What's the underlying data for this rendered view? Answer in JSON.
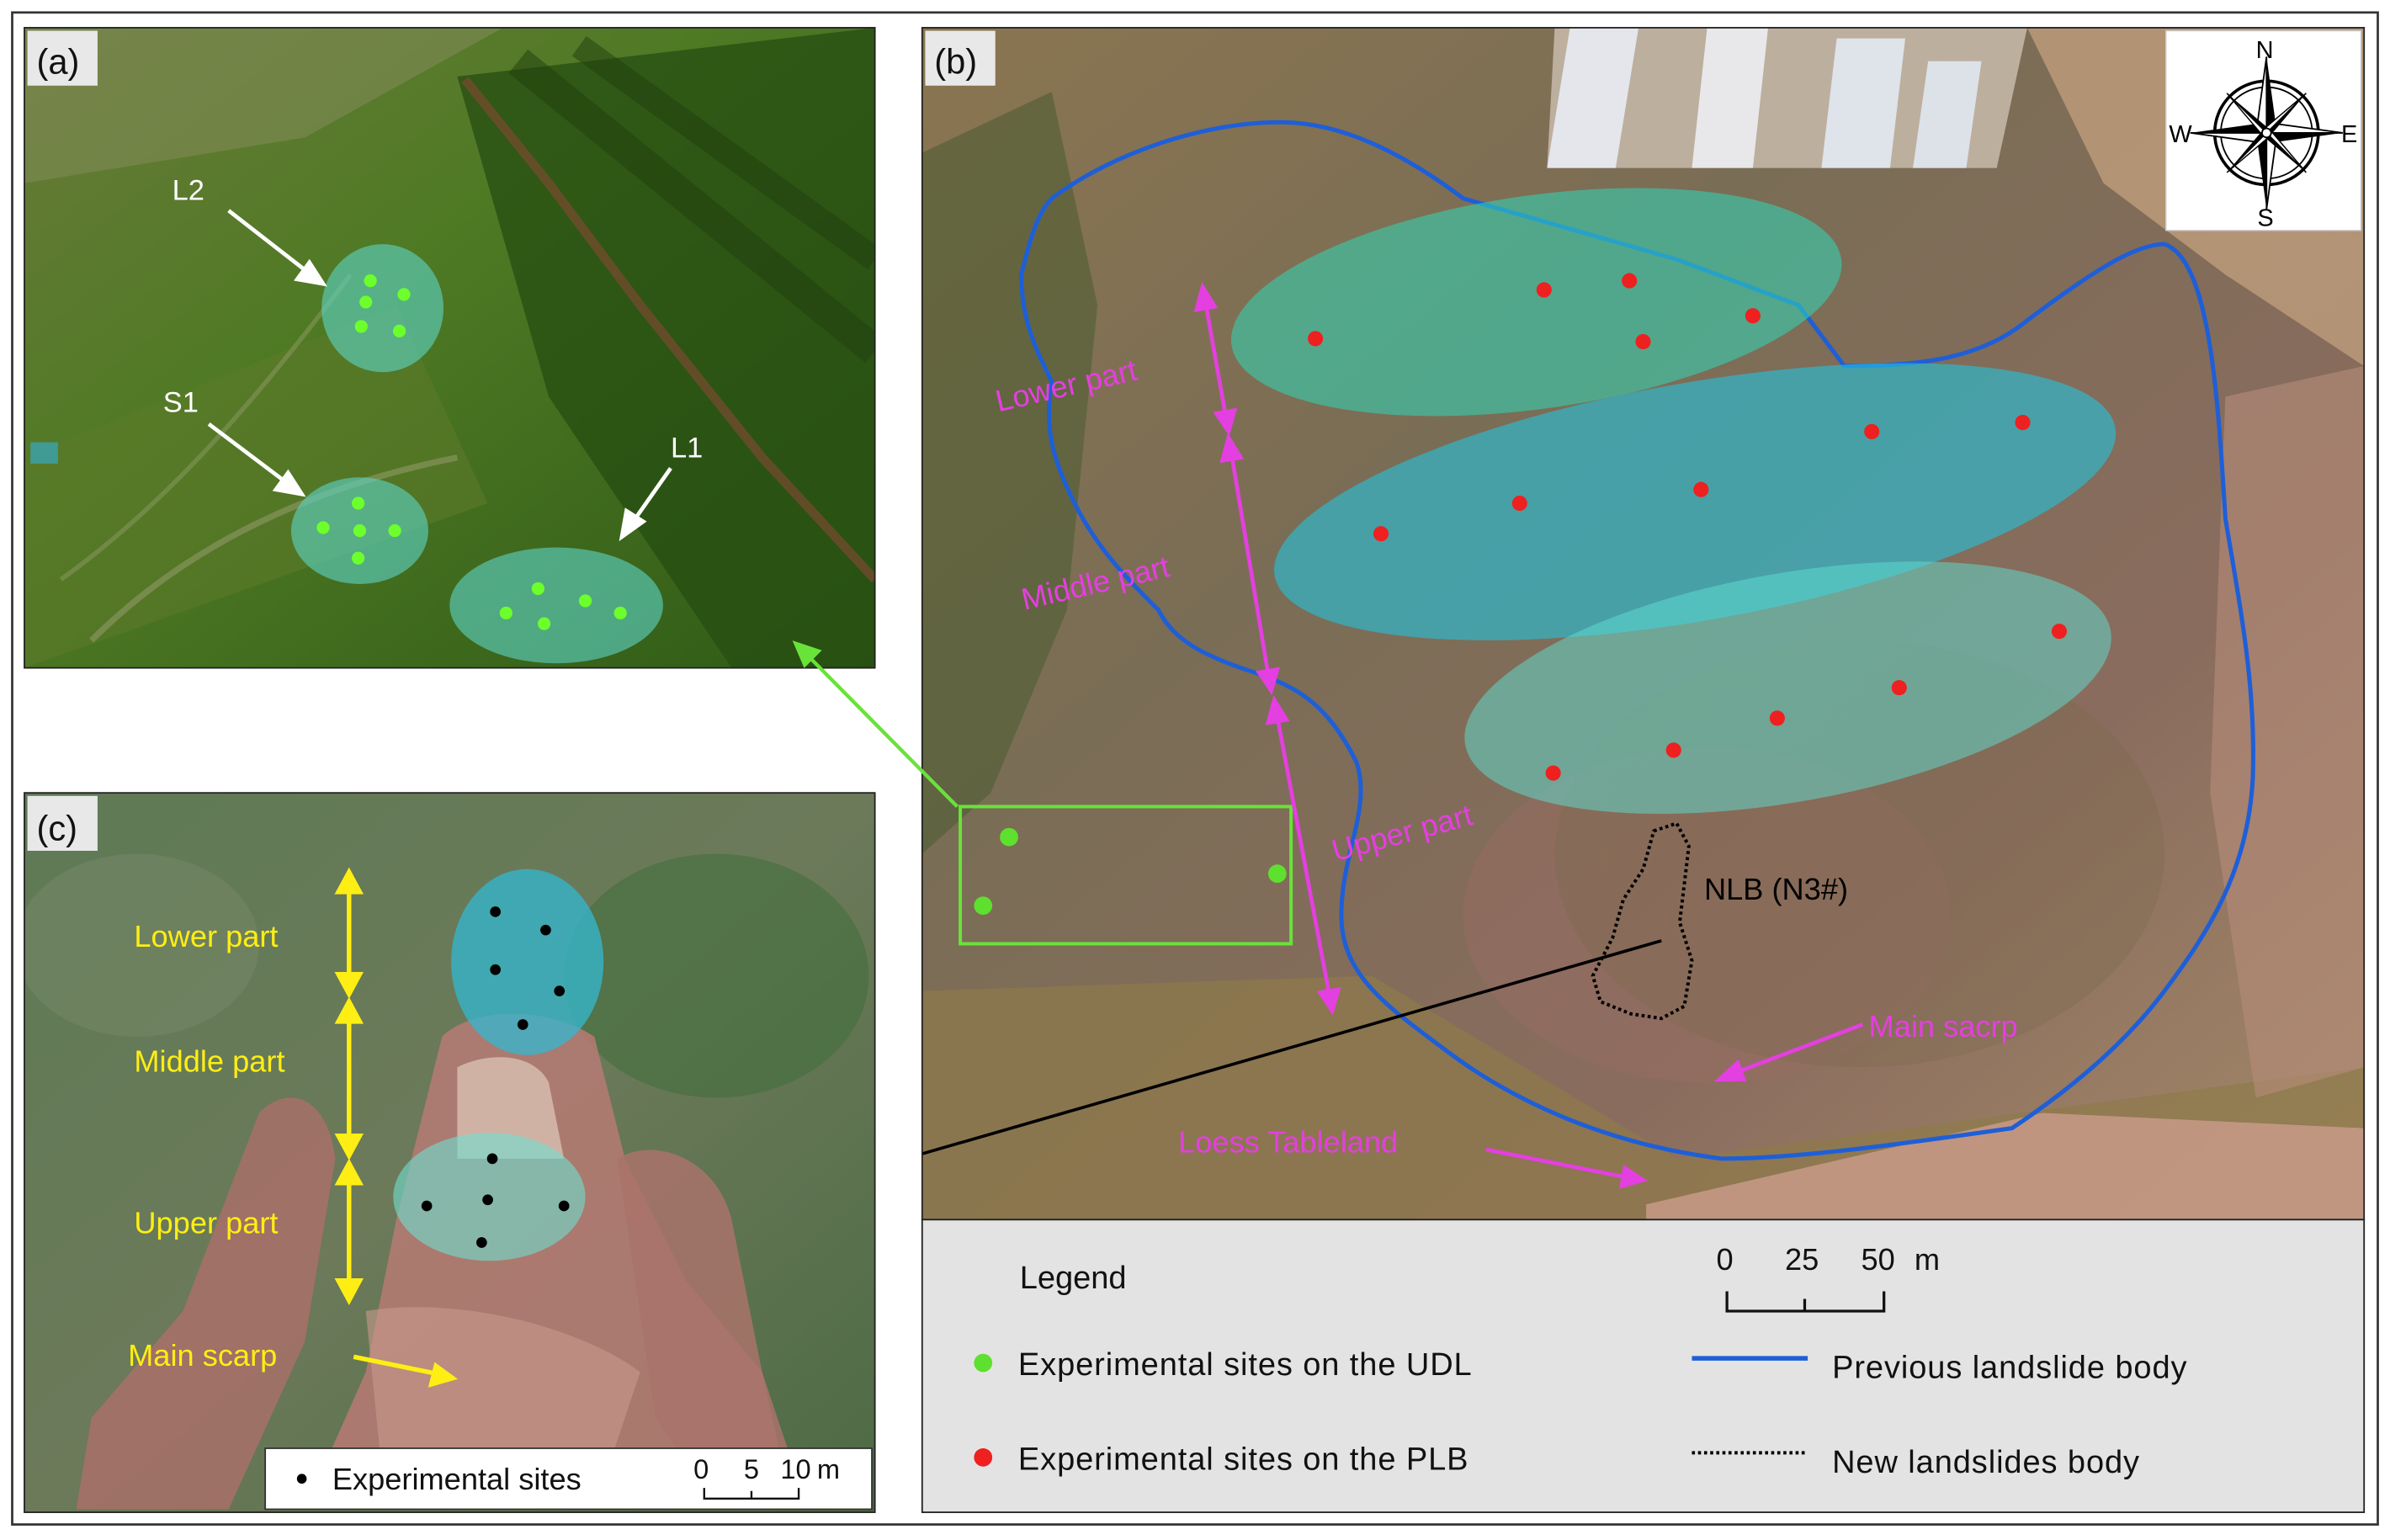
{
  "panels": {
    "a": {
      "tag": "(a)",
      "labels": {
        "l2": "L2",
        "s1": "S1",
        "l1": "L1"
      },
      "colors": {
        "dot": "#6dff2b",
        "ellipse": "#5ed6c8"
      }
    },
    "b": {
      "tag": "(b)",
      "part_labels": {
        "lower": "Lower part",
        "middle": "Middle part",
        "upper": "Upper part"
      },
      "nlb_label": "NLB (N3#)",
      "main_scarp_label": "Main sacrp",
      "loess_label": "Loess Tableland",
      "compass": {
        "n": "N",
        "s": "S",
        "e": "E",
        "w": "W"
      },
      "colors": {
        "dot_plb": "#ee2020",
        "dot_udl": "#5ee02e",
        "boundary": "#1e5fd8",
        "annotation": "#e43fe0",
        "inset_box": "#69e23a"
      }
    },
    "c": {
      "tag": "(c)",
      "part_labels": {
        "lower": "Lower part",
        "middle": "Middle part",
        "upper": "Upper part"
      },
      "main_scarp_label": "Main scarp",
      "legend_text": "Experimental sites",
      "scale": {
        "ticks": [
          "0",
          "5",
          "10"
        ],
        "unit": "m"
      },
      "colors": {
        "annotation": "#ffee14",
        "dot": "#000000"
      }
    }
  },
  "legend": {
    "title": "Legend",
    "items": [
      {
        "label": "Experimental sites on the UDL",
        "symbol": "green-dot",
        "color": "#5ee02e"
      },
      {
        "label": "Experimental sites on the PLB",
        "symbol": "red-dot",
        "color": "#ee2020"
      },
      {
        "label": "Previous landslide body",
        "symbol": "blue-line",
        "color": "#1e5fd8"
      },
      {
        "label": "New landslides body",
        "symbol": "dotted-line",
        "color": "#000000"
      }
    ],
    "scale": {
      "ticks": [
        "0",
        "25",
        "50"
      ],
      "unit": "m"
    }
  }
}
